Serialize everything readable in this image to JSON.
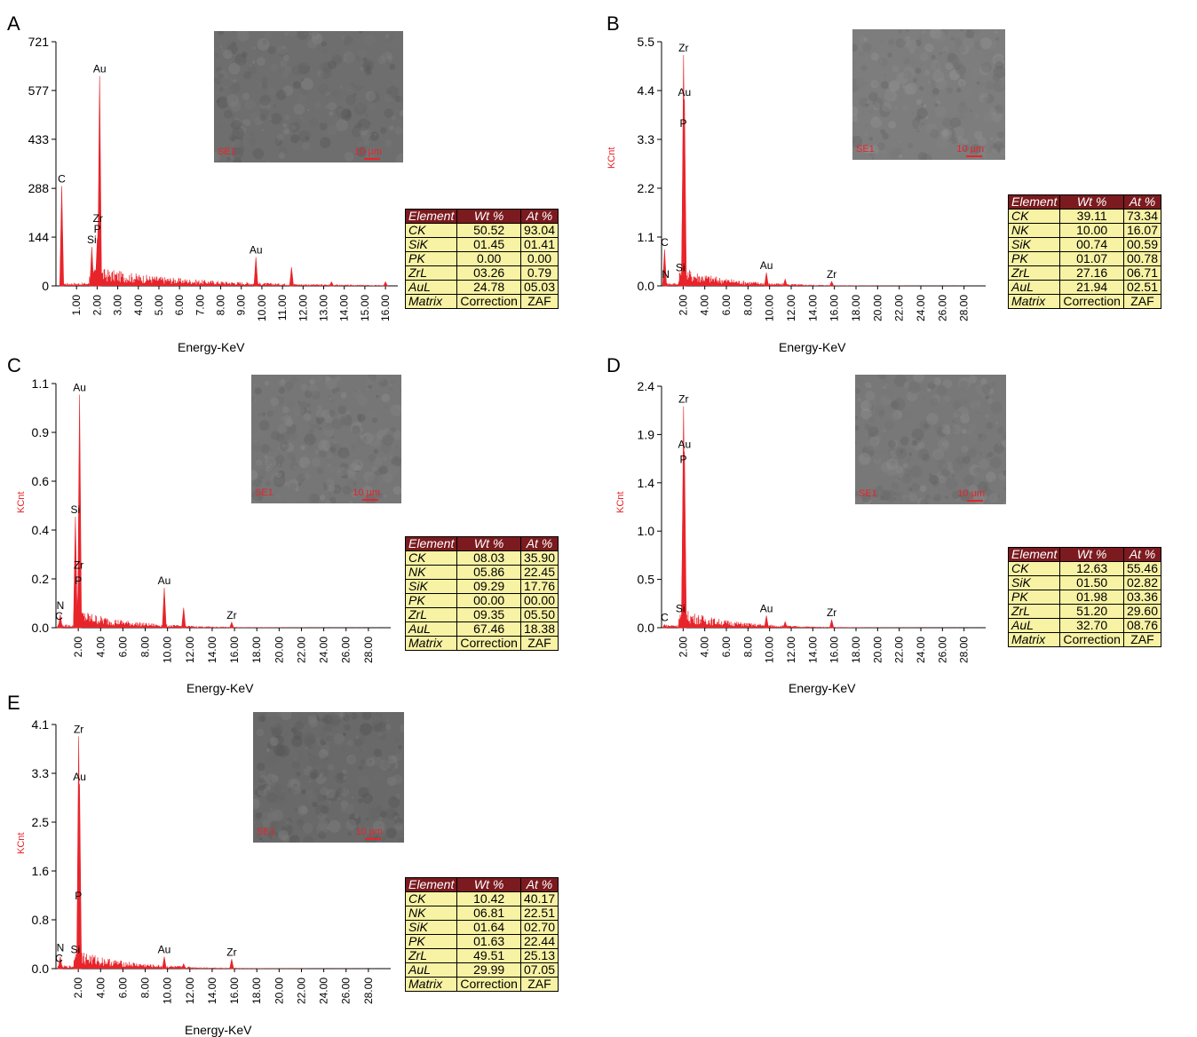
{
  "colors": {
    "spectrum": "#e8242b",
    "table_header_bg": "#7b1a1f",
    "table_cell_bg": "#f7f2a4",
    "sem_gray": "#7d7d7d"
  },
  "table_headers": [
    "Element",
    "Wt %",
    "At %"
  ],
  "sem_label": "SE1",
  "sem_scale": "10 µm",
  "chart_data": [
    {
      "panel": "A",
      "type": "line",
      "xlabel": "Energy-KeV",
      "ylabel": "",
      "xlim": [
        0,
        16.6
      ],
      "ylim": [
        0,
        721
      ],
      "yticks": [
        "0",
        "144",
        "288",
        "433",
        "577",
        "721"
      ],
      "ytick_values": [
        0,
        144,
        288,
        433,
        577,
        721
      ],
      "xticks": [
        "1.00",
        "2.00",
        "3.00",
        "4.00",
        "5.00",
        "6.00",
        "7.00",
        "8.00",
        "9.00",
        "10.00",
        "11.00",
        "12.00",
        "13.00",
        "14.00",
        "15.00",
        "16.00"
      ],
      "xtick_values": [
        1,
        2,
        3,
        4,
        5,
        6,
        7,
        8,
        9,
        10,
        11,
        12,
        13,
        14,
        15,
        16
      ],
      "peaks": [
        {
          "label": "C",
          "x": 0.28,
          "y": 295
        },
        {
          "label": "Si",
          "x": 1.74,
          "y": 115
        },
        {
          "label": "P",
          "x": 2.01,
          "y": 140
        },
        {
          "label": "Zr",
          "x": 2.04,
          "y": 165
        },
        {
          "label": "Au",
          "x": 2.12,
          "y": 620
        },
        {
          "label": "Au",
          "x": 9.71,
          "y": 85
        },
        {
          "label": "",
          "x": 11.44,
          "y": 55
        },
        {
          "label": "",
          "x": 13.38,
          "y": 12
        },
        {
          "label": "",
          "x": 16.0,
          "y": 12
        }
      ],
      "table": [
        [
          "CK",
          "50.52",
          "93.04"
        ],
        [
          "SiK",
          "01.45",
          "01.41"
        ],
        [
          "PK",
          "0.00",
          "0.00"
        ],
        [
          "ZrL",
          "03.26",
          "0.79"
        ],
        [
          "AuL",
          "24.78",
          "05.03"
        ],
        [
          "Matrix",
          "Correction",
          "ZAF"
        ]
      ]
    },
    {
      "panel": "B",
      "type": "line",
      "xlabel": "Energy-KeV",
      "ylabel": "KCnt",
      "xlim": [
        0,
        30
      ],
      "ylim": [
        0,
        5.5
      ],
      "yticks": [
        "0.0",
        "1.1",
        "2.2",
        "3.3",
        "4.4",
        "5.5"
      ],
      "ytick_values": [
        0,
        1.1,
        2.2,
        3.3,
        4.4,
        5.5
      ],
      "xticks": [
        "2.00",
        "4.00",
        "6.00",
        "8.00",
        "10.00",
        "12.00",
        "14.00",
        "16.00",
        "18.00",
        "20.00",
        "22.00",
        "24.00",
        "26.00",
        "28.00"
      ],
      "xtick_values": [
        2,
        4,
        6,
        8,
        10,
        12,
        14,
        16,
        18,
        20,
        22,
        24,
        26,
        28
      ],
      "peaks": [
        {
          "label": "C",
          "x": 0.28,
          "y": 0.82
        },
        {
          "label": "N",
          "x": 0.39,
          "y": 0.1
        },
        {
          "label": "Si",
          "x": 1.74,
          "y": 0.25
        },
        {
          "label": "P",
          "x": 2.01,
          "y": 3.5
        },
        {
          "label": "Zr",
          "x": 2.04,
          "y": 5.2
        },
        {
          "label": "Au",
          "x": 2.12,
          "y": 4.2
        },
        {
          "label": "Au",
          "x": 9.71,
          "y": 0.3
        },
        {
          "label": "",
          "x": 11.44,
          "y": 0.15
        },
        {
          "label": "Zr",
          "x": 15.75,
          "y": 0.1
        }
      ],
      "table": [
        [
          "CK",
          "39.11",
          "73.34"
        ],
        [
          "NK",
          "10.00",
          "16.07"
        ],
        [
          "SiK",
          "00.74",
          "00.59"
        ],
        [
          "PK",
          "01.07",
          "00.78"
        ],
        [
          "ZrL",
          "27.16",
          "06.71"
        ],
        [
          "AuL",
          "21.94",
          "02.51"
        ],
        [
          "Matrix",
          "Correction",
          "ZAF"
        ]
      ]
    },
    {
      "panel": "C",
      "type": "line",
      "xlabel": "Energy-KeV",
      "ylabel": "KCnt",
      "xlim": [
        0,
        30
      ],
      "ylim": [
        0,
        1.1
      ],
      "yticks": [
        "0.0",
        "0.2",
        "0.4",
        "0.6",
        "0.9",
        "1.1"
      ],
      "ytick_values": [
        0,
        0.22,
        0.44,
        0.66,
        0.88,
        1.1
      ],
      "xticks": [
        "2.00",
        "4.00",
        "6.00",
        "8.00",
        "10.00",
        "12.00",
        "14.00",
        "16.00",
        "18.00",
        "20.00",
        "22.00",
        "24.00",
        "26.00",
        "28.00"
      ],
      "xtick_values": [
        2,
        4,
        6,
        8,
        10,
        12,
        14,
        16,
        18,
        20,
        22,
        24,
        26,
        28
      ],
      "peaks": [
        {
          "label": "C",
          "x": 0.28,
          "y": 0.02
        },
        {
          "label": "N",
          "x": 0.39,
          "y": 0.06
        },
        {
          "label": "Si",
          "x": 1.74,
          "y": 0.5
        },
        {
          "label": "P",
          "x": 2.01,
          "y": 0.18
        },
        {
          "label": "Zr",
          "x": 2.04,
          "y": 0.25
        },
        {
          "label": "Au",
          "x": 2.12,
          "y": 1.05
        },
        {
          "label": "Au",
          "x": 9.71,
          "y": 0.18
        },
        {
          "label": "",
          "x": 11.44,
          "y": 0.09
        },
        {
          "label": "Zr",
          "x": 15.75,
          "y": 0.025
        }
      ],
      "table": [
        [
          "CK",
          "08.03",
          "35.90"
        ],
        [
          "NK",
          "05.86",
          "22.45"
        ],
        [
          "SiK",
          "09.29",
          "17.76"
        ],
        [
          "PK",
          "00.00",
          "00.00"
        ],
        [
          "ZrL",
          "09.35",
          "05.50"
        ],
        [
          "AuL",
          "67.46",
          "18.38"
        ],
        [
          "Matrix",
          "Correction",
          "ZAF"
        ]
      ]
    },
    {
      "panel": "D",
      "type": "line",
      "xlabel": "Energy-KeV",
      "ylabel": "KCnt",
      "xlim": [
        0,
        30
      ],
      "ylim": [
        0,
        2.4
      ],
      "yticks": [
        "0.0",
        "0.5",
        "1.0",
        "1.4",
        "1.9",
        "2.4"
      ],
      "ytick_values": [
        0,
        0.48,
        0.96,
        1.44,
        1.92,
        2.4
      ],
      "xticks": [
        "2.00",
        "4.00",
        "6.00",
        "8.00",
        "10.00",
        "12.00",
        "14.00",
        "16.00",
        "18.00",
        "20.00",
        "22.00",
        "24.00",
        "26.00",
        "28.00"
      ],
      "xtick_values": [
        2,
        4,
        6,
        8,
        10,
        12,
        14,
        16,
        18,
        20,
        22,
        24,
        26,
        28
      ],
      "peaks": [
        {
          "label": "C",
          "x": 0.28,
          "y": 0.03
        },
        {
          "label": "Si",
          "x": 1.74,
          "y": 0.12
        },
        {
          "label": "P",
          "x": 2.01,
          "y": 1.6
        },
        {
          "label": "Zr",
          "x": 2.04,
          "y": 2.2
        },
        {
          "label": "Au",
          "x": 2.12,
          "y": 1.75
        },
        {
          "label": "Au",
          "x": 9.71,
          "y": 0.12
        },
        {
          "label": "",
          "x": 11.44,
          "y": 0.06
        },
        {
          "label": "Zr",
          "x": 15.75,
          "y": 0.08
        }
      ],
      "table": [
        [
          "CK",
          "12.63",
          "55.46"
        ],
        [
          "SiK",
          "01.50",
          "02.82"
        ],
        [
          "PK",
          "01.98",
          "03.36"
        ],
        [
          "ZrL",
          "51.20",
          "29.60"
        ],
        [
          "AuL",
          "32.70",
          "08.76"
        ],
        [
          "Matrix",
          "Correction",
          "ZAF"
        ]
      ]
    },
    {
      "panel": "E",
      "type": "line",
      "xlabel": "Energy-KeV",
      "ylabel": "KCnt",
      "xlim": [
        0,
        30
      ],
      "ylim": [
        0,
        4.1
      ],
      "yticks": [
        "0.0",
        "0.8",
        "1.6",
        "2.5",
        "3.3",
        "4.1"
      ],
      "ytick_values": [
        0,
        0.82,
        1.64,
        2.46,
        3.28,
        4.1
      ],
      "xticks": [
        "2.00",
        "4.00",
        "6.00",
        "8.00",
        "10.00",
        "12.00",
        "14.00",
        "16.00",
        "18.00",
        "20.00",
        "22.00",
        "24.00",
        "26.00",
        "28.00"
      ],
      "xtick_values": [
        2,
        4,
        6,
        8,
        10,
        12,
        14,
        16,
        18,
        20,
        22,
        24,
        26,
        28
      ],
      "peaks": [
        {
          "label": "C",
          "x": 0.28,
          "y": 0.05
        },
        {
          "label": "N",
          "x": 0.39,
          "y": 0.2
        },
        {
          "label": "Si",
          "x": 1.74,
          "y": 0.2
        },
        {
          "label": "P",
          "x": 2.01,
          "y": 1.1
        },
        {
          "label": "Zr",
          "x": 2.04,
          "y": 3.9
        },
        {
          "label": "Au",
          "x": 2.12,
          "y": 3.1
        },
        {
          "label": "Au",
          "x": 9.71,
          "y": 0.2
        },
        {
          "label": "",
          "x": 11.44,
          "y": 0.08
        },
        {
          "label": "Zr",
          "x": 15.75,
          "y": 0.16
        }
      ],
      "table": [
        [
          "CK",
          "10.42",
          "40.17"
        ],
        [
          "NK",
          "06.81",
          "22.51"
        ],
        [
          "SiK",
          "01.64",
          "02.70"
        ],
        [
          "PK",
          "01.63",
          "22.44"
        ],
        [
          "ZrL",
          "49.51",
          "25.13"
        ],
        [
          "AuL",
          "29.99",
          "07.05"
        ],
        [
          "Matrix",
          "Correction",
          "ZAF"
        ]
      ]
    }
  ]
}
